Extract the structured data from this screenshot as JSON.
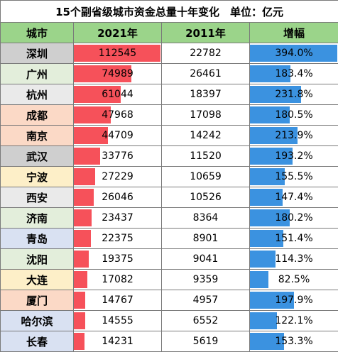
{
  "title": "15个副省级城市资金总量十年变化　单位：亿元",
  "headers": {
    "city": "城市",
    "y2021": "2021年",
    "y2011": "2011年",
    "growth": "增幅"
  },
  "colors": {
    "header_bg": "#9bd48a",
    "bar_2021": "#f6515a",
    "bar_growth": "#3b92e0",
    "city_backgrounds": [
      "#cfcfcf",
      "#e3eedb",
      "#eaeaea",
      "#fbd9c6",
      "#fbd9c6",
      "#cfcfcf",
      "#fdefc8",
      "#eaeaea",
      "#e3eedb",
      "#d9e1f2",
      "#e3eedb",
      "#fdefc8",
      "#fbd9c6",
      "#d9e1f2",
      "#d9e1f2"
    ]
  },
  "chart_data": {
    "type": "table",
    "title": "15个副省级城市资金总量十年变化　单位：亿元",
    "columns": [
      "城市",
      "2021年",
      "2011年",
      "增幅"
    ],
    "rows": [
      {
        "city": "深圳",
        "v2021": 112545,
        "v2011": 22782,
        "growth": "394.0%"
      },
      {
        "city": "广州",
        "v2021": 74989,
        "v2011": 26461,
        "growth": "183.4%"
      },
      {
        "city": "杭州",
        "v2021": 61044,
        "v2011": 18397,
        "growth": "231.8%"
      },
      {
        "city": "成都",
        "v2021": 47968,
        "v2011": 17098,
        "growth": "180.5%"
      },
      {
        "city": "南京",
        "v2021": 44709,
        "v2011": 14242,
        "growth": "213.9%"
      },
      {
        "city": "武汉",
        "v2021": 33776,
        "v2011": 11520,
        "growth": "193.2%"
      },
      {
        "city": "宁波",
        "v2021": 27229,
        "v2011": 10659,
        "growth": "155.5%"
      },
      {
        "city": "西安",
        "v2021": 26046,
        "v2011": 10526,
        "growth": "147.4%"
      },
      {
        "city": "济南",
        "v2021": 23437,
        "v2011": 8364,
        "growth": "180.2%"
      },
      {
        "city": "青岛",
        "v2021": 22375,
        "v2011": 8901,
        "growth": "151.4%"
      },
      {
        "city": "沈阳",
        "v2021": 19375,
        "v2011": 9041,
        "growth": "114.3%"
      },
      {
        "city": "大连",
        "v2021": 17082,
        "v2011": 9359,
        "growth": "82.5%"
      },
      {
        "city": "厦门",
        "v2021": 14767,
        "v2011": 4957,
        "growth": "197.9%"
      },
      {
        "city": "哈尔滨",
        "v2021": 14555,
        "v2011": 6552,
        "growth": "122.1%"
      },
      {
        "city": "长春",
        "v2021": 14231,
        "v2011": 5619,
        "growth": "153.3%"
      }
    ]
  }
}
